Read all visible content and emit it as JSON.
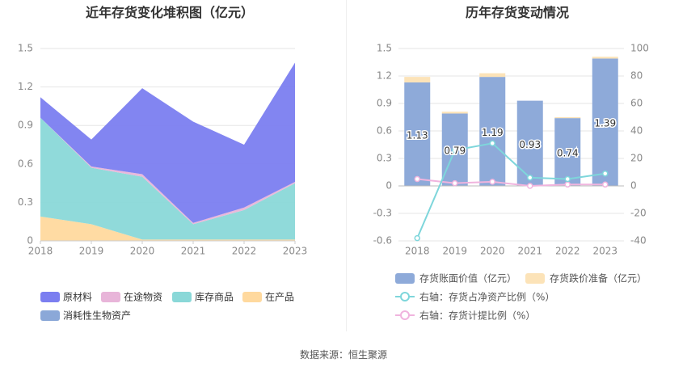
{
  "left_chart": {
    "title": "近年存货变化堆积图（亿元）"
  },
  "right_chart": {
    "title": "历年存货变动情况"
  },
  "source": "数据来源：恒生聚源",
  "colors": {
    "raw_materials": "#7b7ef0",
    "in_transit": "#e8b5d9",
    "finished_goods": "#8ad8d8",
    "wip": "#ffd99e",
    "biological": "#8ba8d8",
    "book_value_bar": "#8eaad9",
    "impairment_bar": "#fce3b8",
    "net_asset_ratio_line": "#7ed6db",
    "provision_ratio_line": "#f0b4de"
  },
  "chart_data": [
    {
      "type": "area",
      "stacked": true,
      "categories": [
        "2018",
        "2019",
        "2020",
        "2021",
        "2022",
        "2023"
      ],
      "ylim": [
        0,
        1.5
      ],
      "yticks": [
        "0",
        "0.3",
        "0.6",
        "0.9",
        "1.2",
        "1.5"
      ],
      "series": [
        {
          "name": "在产品",
          "values": [
            0.19,
            0.13,
            0.01,
            0.01,
            0.01,
            0.01
          ]
        },
        {
          "name": "库存商品",
          "values": [
            0.77,
            0.44,
            0.49,
            0.12,
            0.23,
            0.44
          ]
        },
        {
          "name": "在途物资",
          "values": [
            0.0,
            0.01,
            0.02,
            0.01,
            0.02,
            0.01
          ]
        },
        {
          "name": "原材料",
          "values": [
            0.16,
            0.21,
            0.67,
            0.79,
            0.49,
            0.93
          ]
        },
        {
          "name": "消耗性生物资产",
          "values": [
            0,
            0,
            0,
            0,
            0,
            0
          ]
        }
      ],
      "grid": true,
      "legend_position": "bottom"
    },
    {
      "type": "bar",
      "stacked": true,
      "categories": [
        "2018",
        "2019",
        "2020",
        "2021",
        "2022",
        "2023"
      ],
      "ylim": [
        -0.6,
        1.5
      ],
      "yticks": [
        "-0.6",
        "-0.3",
        "0",
        "0.3",
        "0.6",
        "0.9",
        "1.2",
        "1.5"
      ],
      "y2lim": [
        -40,
        100
      ],
      "y2ticks": [
        "-40",
        "-20",
        "0",
        "20",
        "40",
        "60",
        "80",
        "100"
      ],
      "series": [
        {
          "name": "存货账面价值（亿元）",
          "values": [
            1.13,
            0.79,
            1.19,
            0.93,
            0.74,
            1.39
          ],
          "data_labels": [
            "1.13",
            "0.79",
            "1.19",
            "0.93",
            "0.74",
            "1.39"
          ]
        },
        {
          "name": "存货跌价准备（亿元）",
          "values": [
            0.06,
            0.02,
            0.04,
            0.0,
            0.01,
            0.02
          ]
        },
        {
          "name": "右轴：存货占净资产比例（%）",
          "type": "line",
          "axis": "right",
          "values": [
            -38,
            26,
            31,
            6,
            5,
            9
          ]
        },
        {
          "name": "右轴：存货计提比例（%）",
          "type": "line",
          "axis": "right",
          "values": [
            5,
            2,
            3,
            0,
            1,
            1
          ]
        }
      ],
      "grid": true,
      "legend_position": "bottom"
    }
  ]
}
